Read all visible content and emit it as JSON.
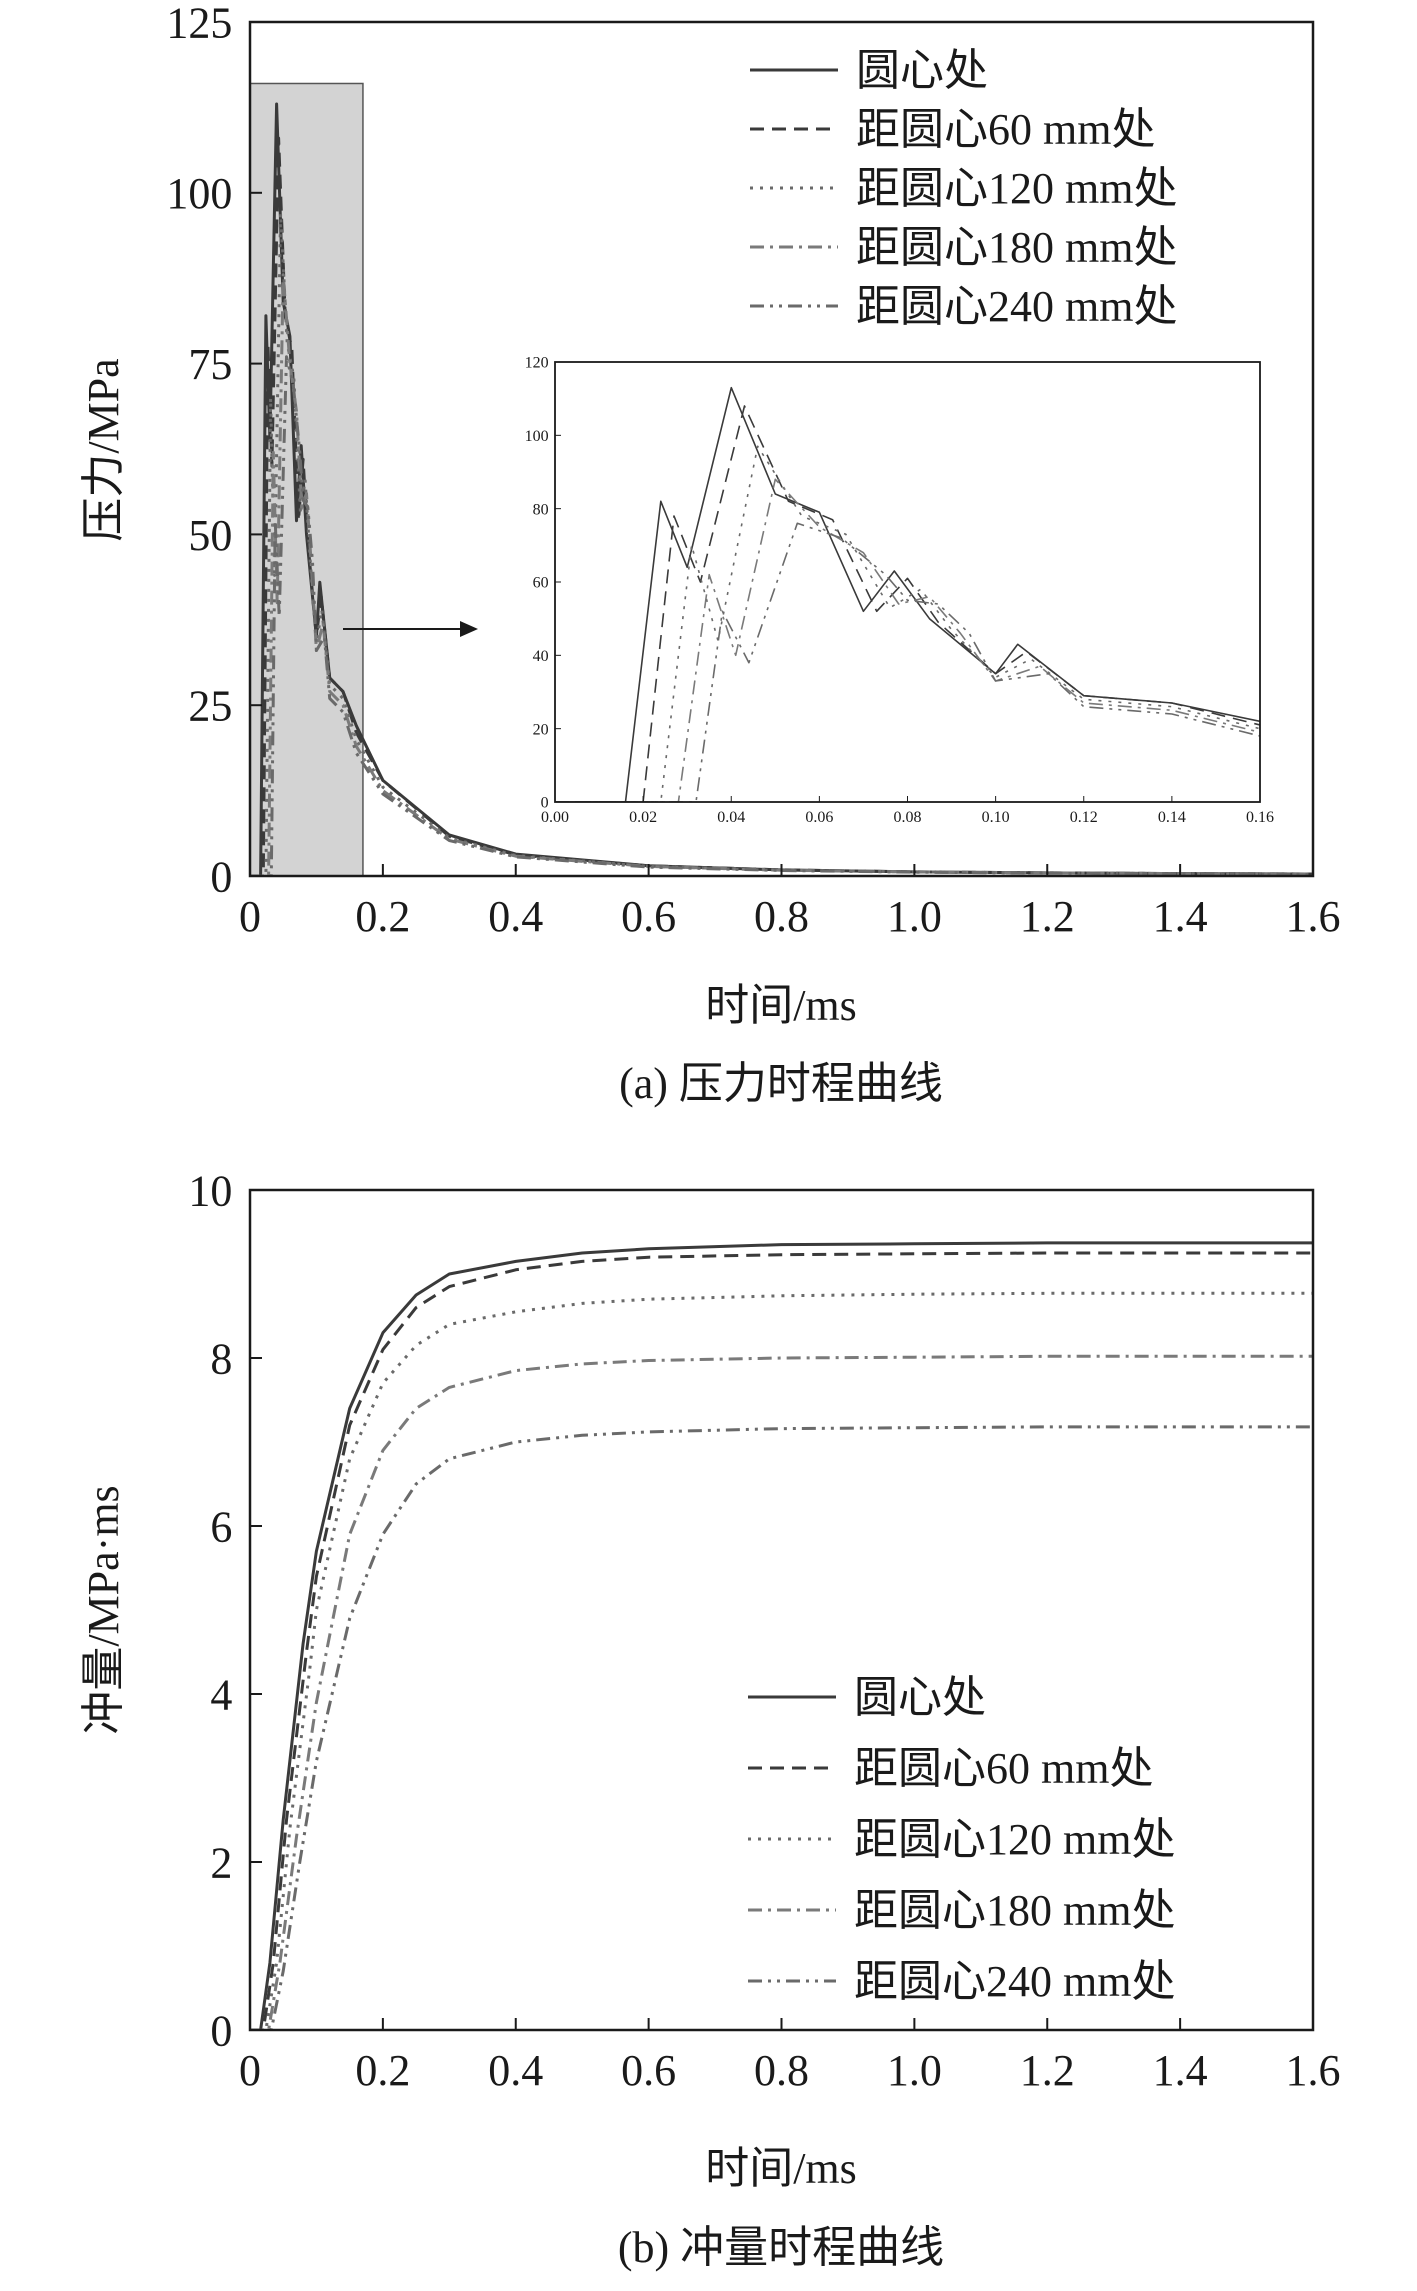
{
  "colors": {
    "background": "#ffffff",
    "axis": "#1a1a1a",
    "series": [
      "#3a3a3a",
      "#3a3a3a",
      "#6a6a6a",
      "#7a7a7a",
      "#6a6a6a"
    ],
    "highlight_fill": "#d3d3d3"
  },
  "chart_data": [
    {
      "type": "line",
      "caption": "(a) 压力时程曲线",
      "xlabel": "时间/ms",
      "ylabel": "压力/MPa",
      "xlim": [
        0,
        1.6
      ],
      "ylim": [
        0,
        125
      ],
      "xticks": [
        "0",
        "0.2",
        "0.4",
        "0.6",
        "0.8",
        "1.0",
        "1.2",
        "1.4",
        "1.6"
      ],
      "yticks": [
        "0",
        "25",
        "50",
        "75",
        "100",
        "125"
      ],
      "legend_position": "top-right",
      "highlight_region": {
        "x": [
          0,
          0.17
        ],
        "y": [
          0,
          116
        ]
      },
      "series": [
        {
          "name": "圆心处",
          "style": "solid",
          "points": [
            [
              0,
              0
            ],
            [
              0.016,
              0
            ],
            [
              0.024,
              82
            ],
            [
              0.03,
              64
            ],
            [
              0.04,
              113
            ],
            [
              0.05,
              84
            ],
            [
              0.06,
              79
            ],
            [
              0.07,
              52
            ],
            [
              0.077,
              63
            ],
            [
              0.085,
              50
            ],
            [
              0.1,
              35
            ],
            [
              0.105,
              43
            ],
            [
              0.12,
              29
            ],
            [
              0.14,
              27
            ],
            [
              0.16,
              22
            ],
            [
              0.2,
              14
            ],
            [
              0.3,
              6
            ],
            [
              0.4,
              3.2
            ],
            [
              0.6,
              1.5
            ],
            [
              0.8,
              0.9
            ],
            [
              1.0,
              0.6
            ],
            [
              1.2,
              0.45
            ],
            [
              1.4,
              0.35
            ],
            [
              1.6,
              0.3
            ]
          ]
        },
        {
          "name": "距圆心60 mm处",
          "style": "dashed",
          "points": [
            [
              0,
              0
            ],
            [
              0.02,
              0
            ],
            [
              0.027,
              78
            ],
            [
              0.033,
              60
            ],
            [
              0.043,
              108
            ],
            [
              0.053,
              82
            ],
            [
              0.063,
              77
            ],
            [
              0.073,
              52
            ],
            [
              0.08,
              61
            ],
            [
              0.087,
              49
            ],
            [
              0.1,
              35
            ],
            [
              0.107,
              41
            ],
            [
              0.12,
              29
            ],
            [
              0.14,
              27
            ],
            [
              0.16,
              21
            ],
            [
              0.2,
              14
            ],
            [
              0.3,
              5.8
            ],
            [
              0.4,
              3.1
            ],
            [
              0.6,
              1.5
            ],
            [
              0.8,
              0.9
            ],
            [
              1.0,
              0.6
            ],
            [
              1.2,
              0.45
            ],
            [
              1.4,
              0.35
            ],
            [
              1.6,
              0.3
            ]
          ]
        },
        {
          "name": "距圆心120 mm处",
          "style": "dotted",
          "points": [
            [
              0,
              0
            ],
            [
              0.024,
              0
            ],
            [
              0.031,
              70
            ],
            [
              0.037,
              44
            ],
            [
              0.046,
              97
            ],
            [
              0.056,
              78
            ],
            [
              0.066,
              73
            ],
            [
              0.076,
              53
            ],
            [
              0.083,
              58
            ],
            [
              0.09,
              47
            ],
            [
              0.1,
              34
            ],
            [
              0.108,
              39
            ],
            [
              0.12,
              28
            ],
            [
              0.14,
              26
            ],
            [
              0.16,
              20
            ],
            [
              0.2,
              13
            ],
            [
              0.3,
              5.6
            ],
            [
              0.4,
              3
            ],
            [
              0.6,
              1.4
            ],
            [
              0.8,
              0.85
            ],
            [
              1.0,
              0.6
            ],
            [
              1.2,
              0.45
            ],
            [
              1.4,
              0.35
            ],
            [
              1.6,
              0.3
            ]
          ]
        },
        {
          "name": "距圆心180 mm处",
          "style": "dashdot",
          "points": [
            [
              0,
              0
            ],
            [
              0.028,
              0
            ],
            [
              0.035,
              62
            ],
            [
              0.041,
              40
            ],
            [
              0.05,
              88
            ],
            [
              0.06,
              75
            ],
            [
              0.07,
              68
            ],
            [
              0.078,
              54
            ],
            [
              0.085,
              56
            ],
            [
              0.092,
              46
            ],
            [
              0.1,
              33
            ],
            [
              0.11,
              37
            ],
            [
              0.12,
              27
            ],
            [
              0.14,
              25
            ],
            [
              0.16,
              19
            ],
            [
              0.2,
              12.5
            ],
            [
              0.3,
              5.4
            ],
            [
              0.4,
              2.9
            ],
            [
              0.6,
              1.4
            ],
            [
              0.8,
              0.85
            ],
            [
              1.0,
              0.6
            ],
            [
              1.2,
              0.45
            ],
            [
              1.4,
              0.35
            ],
            [
              1.6,
              0.3
            ]
          ]
        },
        {
          "name": "距圆心240 mm处",
          "style": "dashdotdot",
          "points": [
            [
              0,
              0
            ],
            [
              0.032,
              0
            ],
            [
              0.038,
              52
            ],
            [
              0.044,
              38
            ],
            [
              0.055,
              76
            ],
            [
              0.065,
              72
            ],
            [
              0.075,
              62
            ],
            [
              0.08,
              55
            ],
            [
              0.087,
              54
            ],
            [
              0.094,
              46
            ],
            [
              0.1,
              33
            ],
            [
              0.112,
              35
            ],
            [
              0.12,
              26
            ],
            [
              0.14,
              24
            ],
            [
              0.16,
              18
            ],
            [
              0.2,
              12
            ],
            [
              0.3,
              5.2
            ],
            [
              0.4,
              2.8
            ],
            [
              0.6,
              1.3
            ],
            [
              0.8,
              0.8
            ],
            [
              1.0,
              0.55
            ],
            [
              1.2,
              0.42
            ],
            [
              1.4,
              0.33
            ],
            [
              1.6,
              0.28
            ]
          ]
        }
      ],
      "inset": {
        "xlim": [
          0,
          0.16
        ],
        "ylim": [
          0,
          120
        ],
        "xticks": [
          "0.00",
          "0.02",
          "0.04",
          "0.06",
          "0.08",
          "0.10",
          "0.12",
          "0.14",
          "0.16"
        ],
        "yticks": [
          "0",
          "20",
          "40",
          "60",
          "80",
          "100",
          "120"
        ]
      }
    },
    {
      "type": "line",
      "caption": "(b) 冲量时程曲线",
      "xlabel": "时间/ms",
      "ylabel": "冲量/MPa·ms",
      "xlim": [
        0,
        1.6
      ],
      "ylim": [
        0,
        10
      ],
      "xticks": [
        "0",
        "0.2",
        "0.4",
        "0.6",
        "0.8",
        "1.0",
        "1.2",
        "1.4",
        "1.6"
      ],
      "yticks": [
        "0",
        "2",
        "4",
        "6",
        "8",
        "10"
      ],
      "legend_position": "bottom-right",
      "series": [
        {
          "name": "圆心处",
          "style": "solid",
          "points": [
            [
              0,
              0
            ],
            [
              0.016,
              0
            ],
            [
              0.03,
              0.8
            ],
            [
              0.05,
              2.5
            ],
            [
              0.08,
              4.6
            ],
            [
              0.1,
              5.7
            ],
            [
              0.15,
              7.4
            ],
            [
              0.2,
              8.3
            ],
            [
              0.25,
              8.75
            ],
            [
              0.3,
              9.0
            ],
            [
              0.4,
              9.15
            ],
            [
              0.5,
              9.25
            ],
            [
              0.6,
              9.3
            ],
            [
              0.8,
              9.35
            ],
            [
              1.0,
              9.36
            ],
            [
              1.2,
              9.37
            ],
            [
              1.4,
              9.37
            ],
            [
              1.6,
              9.37
            ]
          ]
        },
        {
          "name": "距圆心60 mm处",
          "style": "dashed",
          "points": [
            [
              0,
              0
            ],
            [
              0.02,
              0
            ],
            [
              0.035,
              0.8
            ],
            [
              0.055,
              2.5
            ],
            [
              0.085,
              4.5
            ],
            [
              0.1,
              5.4
            ],
            [
              0.15,
              7.2
            ],
            [
              0.2,
              8.1
            ],
            [
              0.25,
              8.6
            ],
            [
              0.3,
              8.85
            ],
            [
              0.4,
              9.05
            ],
            [
              0.5,
              9.15
            ],
            [
              0.6,
              9.2
            ],
            [
              0.8,
              9.23
            ],
            [
              1.0,
              9.24
            ],
            [
              1.2,
              9.25
            ],
            [
              1.4,
              9.25
            ],
            [
              1.6,
              9.25
            ]
          ]
        },
        {
          "name": "距圆心120 mm处",
          "style": "dotted",
          "points": [
            [
              0,
              0
            ],
            [
              0.024,
              0
            ],
            [
              0.04,
              0.8
            ],
            [
              0.06,
              2.4
            ],
            [
              0.09,
              4.3
            ],
            [
              0.1,
              5.0
            ],
            [
              0.15,
              6.8
            ],
            [
              0.2,
              7.7
            ],
            [
              0.25,
              8.15
            ],
            [
              0.3,
              8.4
            ],
            [
              0.4,
              8.55
            ],
            [
              0.5,
              8.65
            ],
            [
              0.6,
              8.7
            ],
            [
              0.8,
              8.74
            ],
            [
              1.0,
              8.76
            ],
            [
              1.2,
              8.77
            ],
            [
              1.4,
              8.77
            ],
            [
              1.6,
              8.77
            ]
          ]
        },
        {
          "name": "距圆心180 mm处",
          "style": "dashdot",
          "points": [
            [
              0,
              0
            ],
            [
              0.028,
              0
            ],
            [
              0.045,
              0.8
            ],
            [
              0.07,
              2.3
            ],
            [
              0.1,
              3.9
            ],
            [
              0.15,
              5.9
            ],
            [
              0.2,
              6.9
            ],
            [
              0.25,
              7.4
            ],
            [
              0.3,
              7.65
            ],
            [
              0.4,
              7.85
            ],
            [
              0.5,
              7.93
            ],
            [
              0.6,
              7.97
            ],
            [
              0.8,
              8.0
            ],
            [
              1.0,
              8.01
            ],
            [
              1.2,
              8.02
            ],
            [
              1.4,
              8.02
            ],
            [
              1.6,
              8.02
            ]
          ]
        },
        {
          "name": "距圆心240 mm处",
          "style": "dashdotdot",
          "points": [
            [
              0,
              0
            ],
            [
              0.032,
              0
            ],
            [
              0.05,
              0.7
            ],
            [
              0.075,
              2.0
            ],
            [
              0.1,
              3.2
            ],
            [
              0.15,
              4.9
            ],
            [
              0.2,
              5.9
            ],
            [
              0.25,
              6.5
            ],
            [
              0.3,
              6.8
            ],
            [
              0.4,
              7.0
            ],
            [
              0.5,
              7.08
            ],
            [
              0.6,
              7.12
            ],
            [
              0.8,
              7.16
            ],
            [
              1.0,
              7.17
            ],
            [
              1.2,
              7.18
            ],
            [
              1.4,
              7.18
            ],
            [
              1.6,
              7.18
            ]
          ]
        }
      ]
    }
  ]
}
